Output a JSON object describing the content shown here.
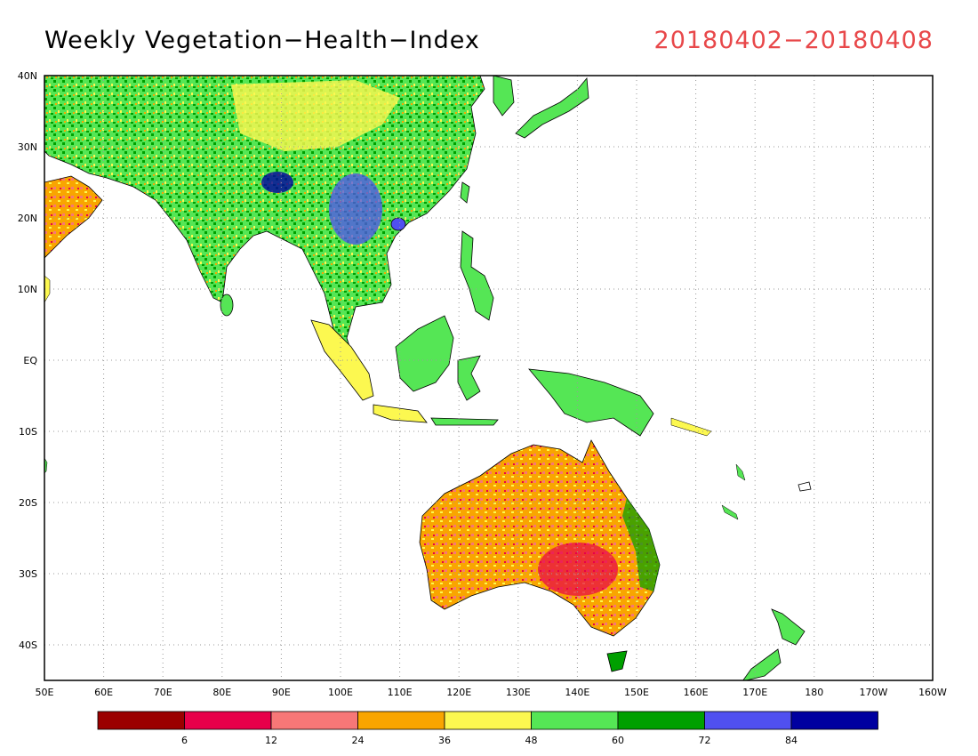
{
  "header": {
    "title": "Weekly Vegetation−Health−Index",
    "date_range": "20180402−20180408"
  },
  "map": {
    "lat_labels": [
      "40N",
      "30N",
      "20N",
      "10N",
      "EQ",
      "10S",
      "20S",
      "30S",
      "40S"
    ],
    "lon_labels": [
      "50E",
      "60E",
      "70E",
      "80E",
      "90E",
      "100E",
      "110E",
      "120E",
      "130E",
      "140E",
      "150E",
      "160E",
      "170E",
      "180",
      "170W",
      "160W"
    ]
  },
  "colorbar": {
    "colors": [
      "#9b0000",
      "#e8004a",
      "#f77777",
      "#f9a500",
      "#fcf850",
      "#55e655",
      "#00a000",
      "#5050f0",
      "#0000a0"
    ],
    "tick_labels": [
      "6",
      "12",
      "24",
      "36",
      "48",
      "60",
      "72",
      "84"
    ]
  },
  "colors": {
    "title": "#000000",
    "date": "#e8484a",
    "ocean": "#ffffff",
    "grid": "#999999"
  }
}
